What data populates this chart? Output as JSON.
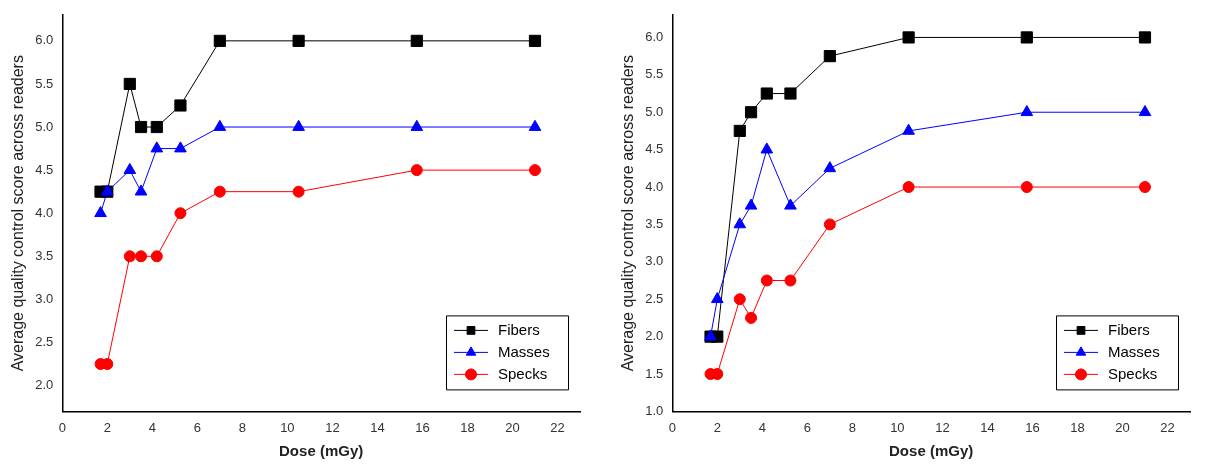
{
  "chart_data": [
    {
      "type": "line",
      "xlabel": "Dose (mGy)",
      "ylabel": "Average quality control score across readers",
      "x": [
        1.7,
        2,
        3,
        3.5,
        4.2,
        5.25,
        7,
        10.5,
        15.75,
        21
      ],
      "series": [
        {
          "name": "Fibers",
          "color": "#000000",
          "marker": "square",
          "values": [
            4.25,
            4.25,
            5.5,
            5.0,
            5.0,
            5.25,
            6.0,
            6.0,
            6.0,
            6.0
          ]
        },
        {
          "name": "Masses",
          "color": "#0000ff",
          "marker": "triangle",
          "values": [
            4.0,
            4.25,
            4.5,
            4.25,
            4.75,
            4.75,
            5.0,
            5.0,
            5.0,
            5.0
          ]
        },
        {
          "name": "Specks",
          "color": "#ff0000",
          "marker": "circle",
          "values": [
            2.25,
            2.25,
            3.5,
            3.5,
            3.5,
            4.0,
            4.25,
            4.25,
            4.5,
            4.5
          ]
        }
      ],
      "xlim": [
        0,
        23
      ],
      "xticks": [
        0,
        2,
        4,
        6,
        8,
        10,
        12,
        14,
        16,
        18,
        20,
        22
      ],
      "ylim": [
        1.7,
        6.3
      ],
      "yticks": [
        {
          "value": 2,
          "label": "2.0"
        },
        {
          "value": 2.5,
          "label": "2.5"
        },
        {
          "value": 3,
          "label": "3.0"
        },
        {
          "value": 3.5,
          "label": "3.5"
        },
        {
          "value": 4,
          "label": "4.0"
        },
        {
          "value": 4.5,
          "label": "4.5"
        },
        {
          "value": 5,
          "label": "5.0"
        },
        {
          "value": 5.5,
          "label": "5.5"
        },
        {
          "value": 6,
          "label": "6.0"
        }
      ],
      "grid": false,
      "legend": "bottom right"
    },
    {
      "type": "line",
      "xlabel": "Dose (mGy)",
      "ylabel": "Average quality control score across readers",
      "x": [
        1.7,
        2,
        3,
        3.5,
        4.2,
        5.25,
        7,
        10.5,
        15.75,
        21
      ],
      "series": [
        {
          "name": "Fibers",
          "color": "#000000",
          "marker": "square",
          "values": [
            2.0,
            2.0,
            4.75,
            5.0,
            5.25,
            5.25,
            5.75,
            6.0,
            6.0,
            6.0
          ]
        },
        {
          "name": "Masses",
          "color": "#0000ff",
          "marker": "triangle",
          "values": [
            2.0,
            2.5,
            3.5,
            3.75,
            4.5,
            3.75,
            4.25,
            4.75,
            5.0,
            5.0
          ]
        },
        {
          "name": "Specks",
          "color": "#ff0000",
          "marker": "circle",
          "values": [
            1.5,
            1.5,
            2.5,
            2.25,
            2.75,
            2.75,
            3.5,
            4.0,
            4.0,
            4.0
          ]
        }
      ],
      "xlim": [
        0,
        23
      ],
      "xticks": [
        0,
        2,
        4,
        6,
        8,
        10,
        12,
        14,
        16,
        18,
        20,
        22
      ],
      "ylim": [
        1.0,
        6.3
      ],
      "yticks": [
        {
          "value": 1,
          "label": "1.0"
        },
        {
          "value": 1.5,
          "label": "1.5"
        },
        {
          "value": 2,
          "label": "2.0"
        },
        {
          "value": 2.5,
          "label": "2.5"
        },
        {
          "value": 3,
          "label": "3.0"
        },
        {
          "value": 3.5,
          "label": "3.5"
        },
        {
          "value": 4,
          "label": "4.0"
        },
        {
          "value": 4.5,
          "label": "4.5"
        },
        {
          "value": 5,
          "label": "5.0"
        },
        {
          "value": 5.5,
          "label": "5.5"
        },
        {
          "value": 6,
          "label": "6.0"
        }
      ],
      "grid": false,
      "legend": "bottom right"
    }
  ]
}
